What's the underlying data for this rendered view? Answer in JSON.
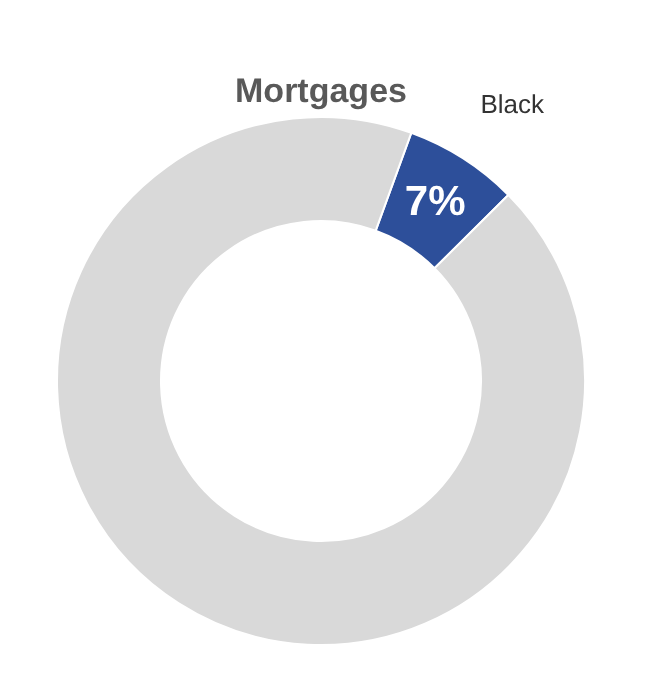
{
  "chart_data": {
    "type": "donut",
    "title": "Mortgages",
    "categories": [
      "Black",
      null
    ],
    "values": [
      7,
      93
    ],
    "colors": [
      "#2d4f9a",
      "#d9d9d9"
    ],
    "value_labels": [
      "7%",
      null
    ]
  }
}
